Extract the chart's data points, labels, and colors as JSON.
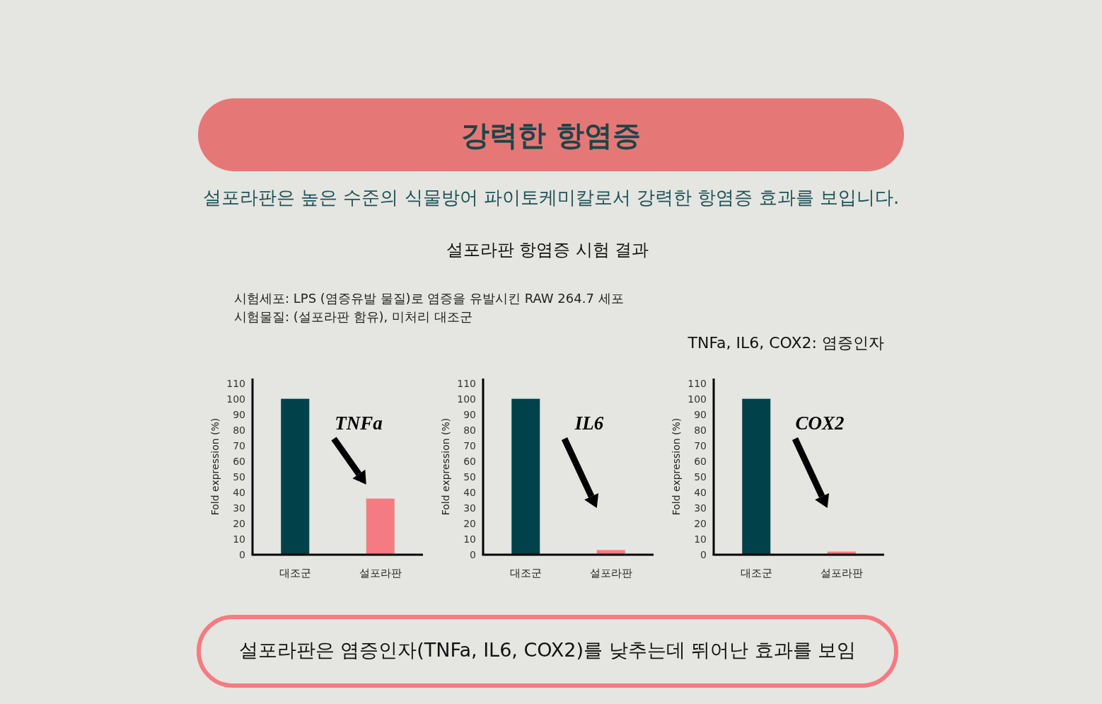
{
  "chart_data": [
    {
      "type": "other",
      "title": "강력한 항염증",
      "subtitle": "설포라판은 높은 수준의 식물방어 파이토케미칼로서 강력한 항염증 효과를 보입니다.",
      "annotations": [
        "설포라판 항염증 시험 결과",
        "시험세포: LPS (염증유발 물질)로 염증을 유발시킨 RAW 264.7 세포",
        "시험물질: (설포라판 함유), 미처리 대조군",
        "TNFa, IL6, COX2: 염증인자",
        "설포라판은 염증인자(TNFa, IL6, COX2)를 낮추는데 뛰어난 효과를 보임"
      ]
    },
    {
      "type": "bar",
      "title": "TNFa",
      "ylabel": "Fold expression (%)",
      "categories": [
        "대조군",
        "설포라판"
      ],
      "values": [
        100,
        36
      ],
      "colors": [
        "#00414a",
        "#f47b82"
      ],
      "ylim": [
        0,
        113
      ],
      "yticks": [
        0,
        10,
        20,
        30,
        40,
        50,
        60,
        70,
        80,
        90,
        100,
        110
      ]
    },
    {
      "type": "bar",
      "title": "IL6",
      "ylabel": "Fold expression (%)",
      "categories": [
        "대조군",
        "설포라판"
      ],
      "values": [
        100,
        3
      ],
      "colors": [
        "#00414a",
        "#f47b82"
      ],
      "ylim": [
        0,
        113
      ],
      "yticks": [
        0,
        10,
        20,
        30,
        40,
        50,
        60,
        70,
        80,
        90,
        100,
        110
      ]
    },
    {
      "type": "bar",
      "title": "COX2",
      "ylabel": "Fold expression (%)",
      "categories": [
        "대조군",
        "설포라판"
      ],
      "values": [
        100,
        2
      ],
      "colors": [
        "#00414a",
        "#f47b82"
      ],
      "ylim": [
        0,
        113
      ],
      "yticks": [
        0,
        10,
        20,
        30,
        40,
        50,
        60,
        70,
        80,
        90,
        100,
        110
      ]
    }
  ]
}
